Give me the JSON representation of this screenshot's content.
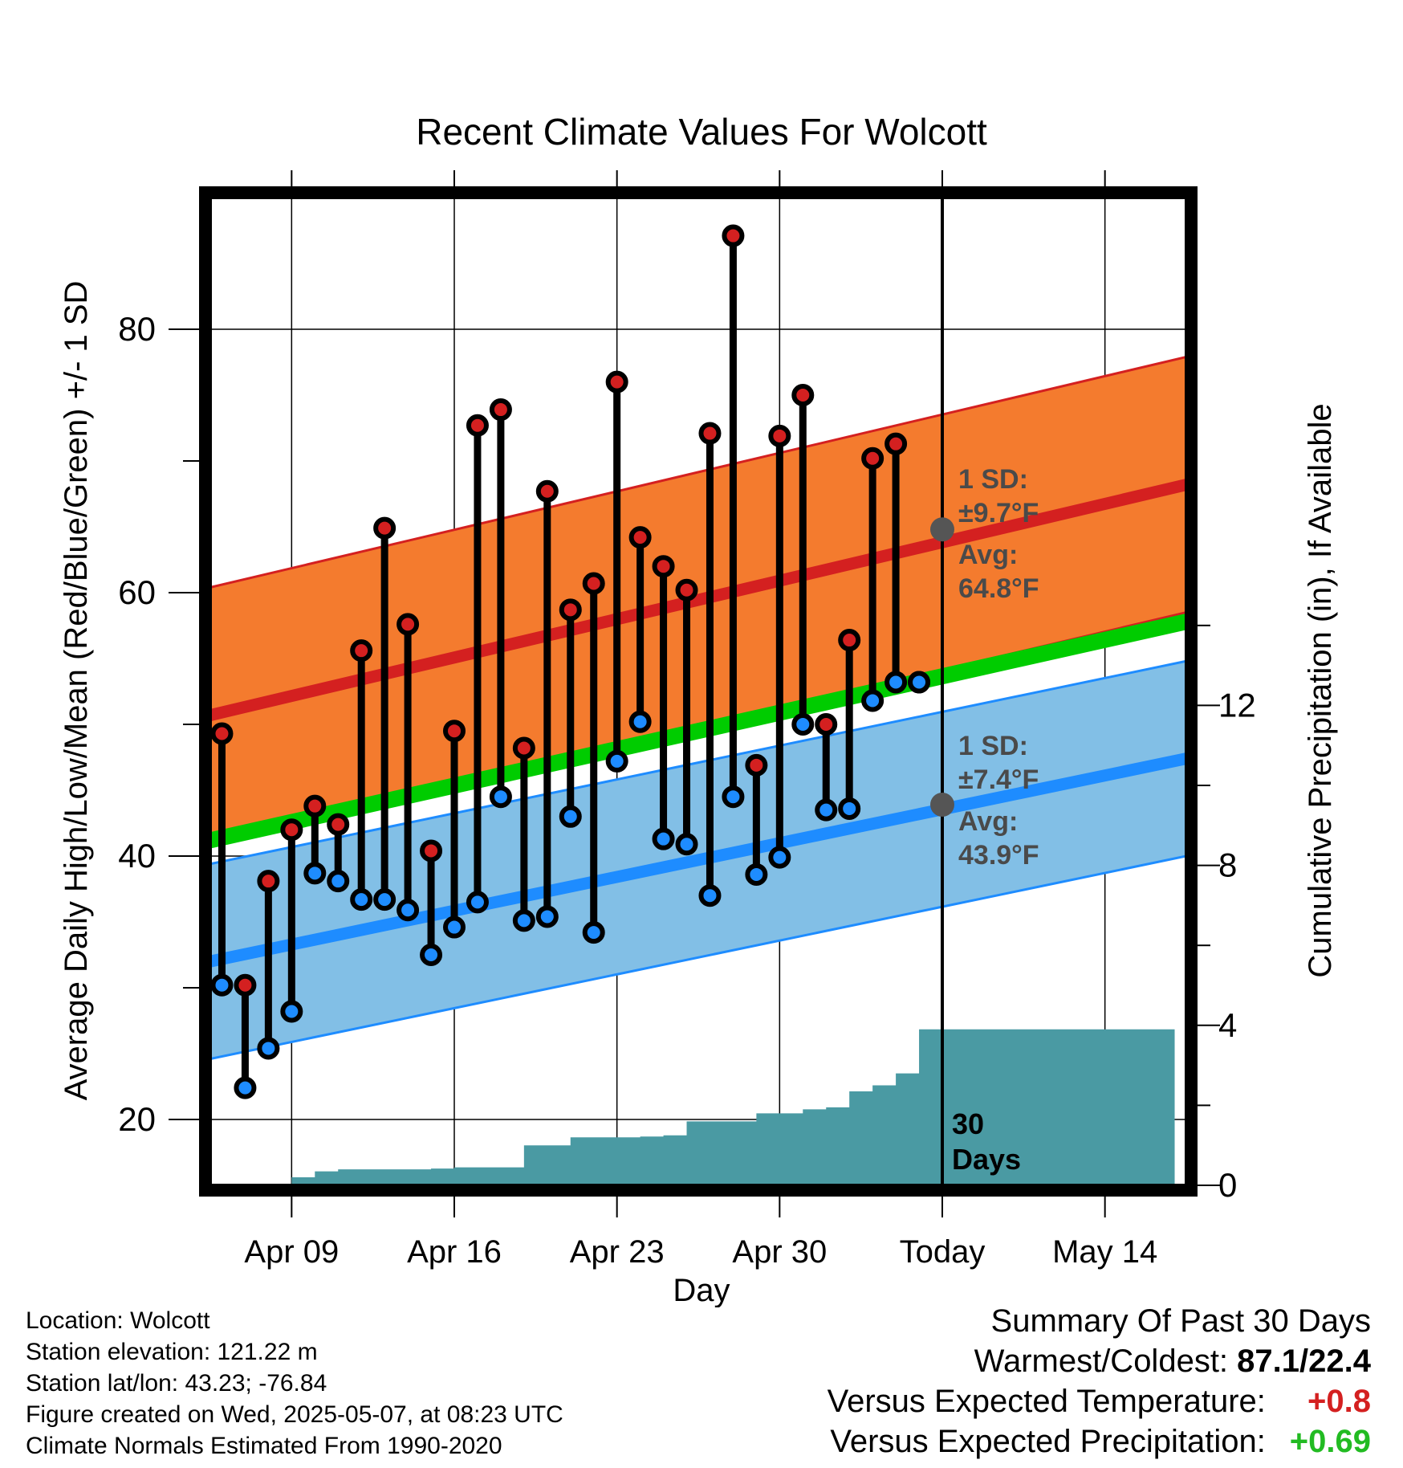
{
  "chart_data": {
    "type": "line",
    "title": "Recent Climate Values For Wolcott",
    "xlabel": "Day",
    "ylabel_left": "Average Daily High/Low/Mean (Red/Blue/Green) +/- 1 SD",
    "ylabel_right": "Cumulative Precipitation (in), If Available",
    "x_tick_labels": [
      "Apr 09",
      "Apr 16",
      "Apr 23",
      "Apr 30",
      "Today",
      "May 14"
    ],
    "y_left_ticks": [
      20,
      40,
      60,
      80
    ],
    "y_left_range": [
      15,
      90
    ],
    "y_right_ticks": [
      0,
      4,
      8,
      12
    ],
    "y_right_range": [
      0,
      24.7
    ],
    "x_range_days": [
      "2025-04-05 12:00",
      "2025-05-17 12:00"
    ],
    "today": "2025-05-07",
    "today_note": "30 Days",
    "grid": true,
    "colors": {
      "high_band": "#f47b2e",
      "high_line": "#d42020",
      "low_band": "#82bfe6",
      "low_line": "#1e8cff",
      "mean_line": "#00cc00",
      "precip": "#4a9aa3",
      "observed_high": "#d42020",
      "observed_low": "#1e8cff",
      "avg_marker": "#555555"
    },
    "normals": {
      "dates": [
        "2025-04-05 12:00",
        "2025-05-17 12:00"
      ],
      "high_avg": [
        50.7,
        68.2
      ],
      "high_sd": 9.7,
      "low_avg": [
        32.0,
        47.4
      ],
      "low_sd": 7.4,
      "mean_avg": [
        41.2,
        57.8
      ]
    },
    "today_high": {
      "sd_label": "1 SD:",
      "sd_value": "±9.7°F",
      "avg_label": "Avg:",
      "avg_value": "64.8°F",
      "avg": 64.8
    },
    "today_low": {
      "sd_label": "1 SD:",
      "sd_value": "±7.4°F",
      "avg_label": "Avg:",
      "avg_value": "43.9°F",
      "avg": 43.9
    },
    "observed": {
      "dates": [
        "2025-04-06",
        "2025-04-07",
        "2025-04-08",
        "2025-04-09",
        "2025-04-10",
        "2025-04-11",
        "2025-04-12",
        "2025-04-13",
        "2025-04-14",
        "2025-04-15",
        "2025-04-16",
        "2025-04-17",
        "2025-04-18",
        "2025-04-19",
        "2025-04-20",
        "2025-04-21",
        "2025-04-22",
        "2025-04-23",
        "2025-04-24",
        "2025-04-25",
        "2025-04-26",
        "2025-04-27",
        "2025-04-28",
        "2025-04-29",
        "2025-04-30",
        "2025-05-01",
        "2025-05-02",
        "2025-05-03",
        "2025-05-04",
        "2025-05-05",
        "2025-05-06"
      ],
      "high": [
        49.3,
        30.2,
        38.1,
        42.0,
        43.8,
        42.4,
        55.6,
        64.9,
        57.6,
        40.4,
        49.5,
        72.7,
        73.9,
        48.2,
        67.7,
        58.7,
        60.7,
        76.0,
        64.2,
        62.0,
        60.2,
        72.1,
        87.1,
        46.9,
        71.9,
        75.0,
        50.0,
        56.4,
        70.2,
        71.3,
        53.2
      ],
      "low": [
        30.2,
        22.4,
        25.4,
        28.2,
        38.7,
        38.1,
        36.7,
        36.7,
        35.9,
        32.5,
        34.6,
        36.5,
        44.5,
        35.1,
        35.4,
        43.0,
        34.2,
        47.2,
        50.2,
        41.3,
        40.9,
        37.0,
        44.5,
        38.6,
        39.9,
        50.0,
        43.5,
        43.6,
        51.8,
        53.2,
        53.2
      ]
    },
    "precipitation": {
      "dates": [
        "2025-04-05",
        "2025-04-07",
        "2025-04-08",
        "2025-04-09",
        "2025-04-10",
        "2025-04-11",
        "2025-04-12",
        "2025-04-13",
        "2025-04-14",
        "2025-04-15",
        "2025-04-16",
        "2025-04-17",
        "2025-04-18",
        "2025-04-19",
        "2025-04-20",
        "2025-04-21",
        "2025-04-22",
        "2025-04-23",
        "2025-04-24",
        "2025-04-25",
        "2025-04-26",
        "2025-04-27",
        "2025-04-28",
        "2025-04-29",
        "2025-04-30",
        "2025-05-01",
        "2025-05-02",
        "2025-05-03",
        "2025-05-04",
        "2025-05-05",
        "2025-05-06",
        "2025-05-17"
      ],
      "cumulative": [
        0,
        0,
        0,
        0.2,
        0.35,
        0.4,
        0.4,
        0.4,
        0.4,
        0.42,
        0.45,
        0.45,
        0.45,
        1.0,
        1.0,
        1.2,
        1.2,
        1.2,
        1.22,
        1.25,
        1.6,
        1.6,
        1.6,
        1.8,
        1.8,
        1.9,
        1.95,
        2.35,
        2.5,
        2.8,
        3.9,
        3.9
      ]
    }
  },
  "info": {
    "location": "Location: Wolcott",
    "elevation": "Station elevation: 121.22 m",
    "latlon": "Station lat/lon: 43.23; -76.84",
    "created": "Figure created on Wed, 2025-05-07, at 08:23 UTC",
    "normals": "Climate Normals Estimated From 1990-2020"
  },
  "summary": {
    "title": "Summary Of Past 30 Days",
    "warmest_label": "Warmest/Coldest:",
    "warmest_value": "87.1/22.4",
    "temp_label": "Versus Expected Temperature:",
    "temp_value": "+0.8",
    "temp_color": "#d42020",
    "precip_label": "Versus Expected Precipitation:",
    "precip_value": "+0.69",
    "precip_color": "#22bb22"
  }
}
